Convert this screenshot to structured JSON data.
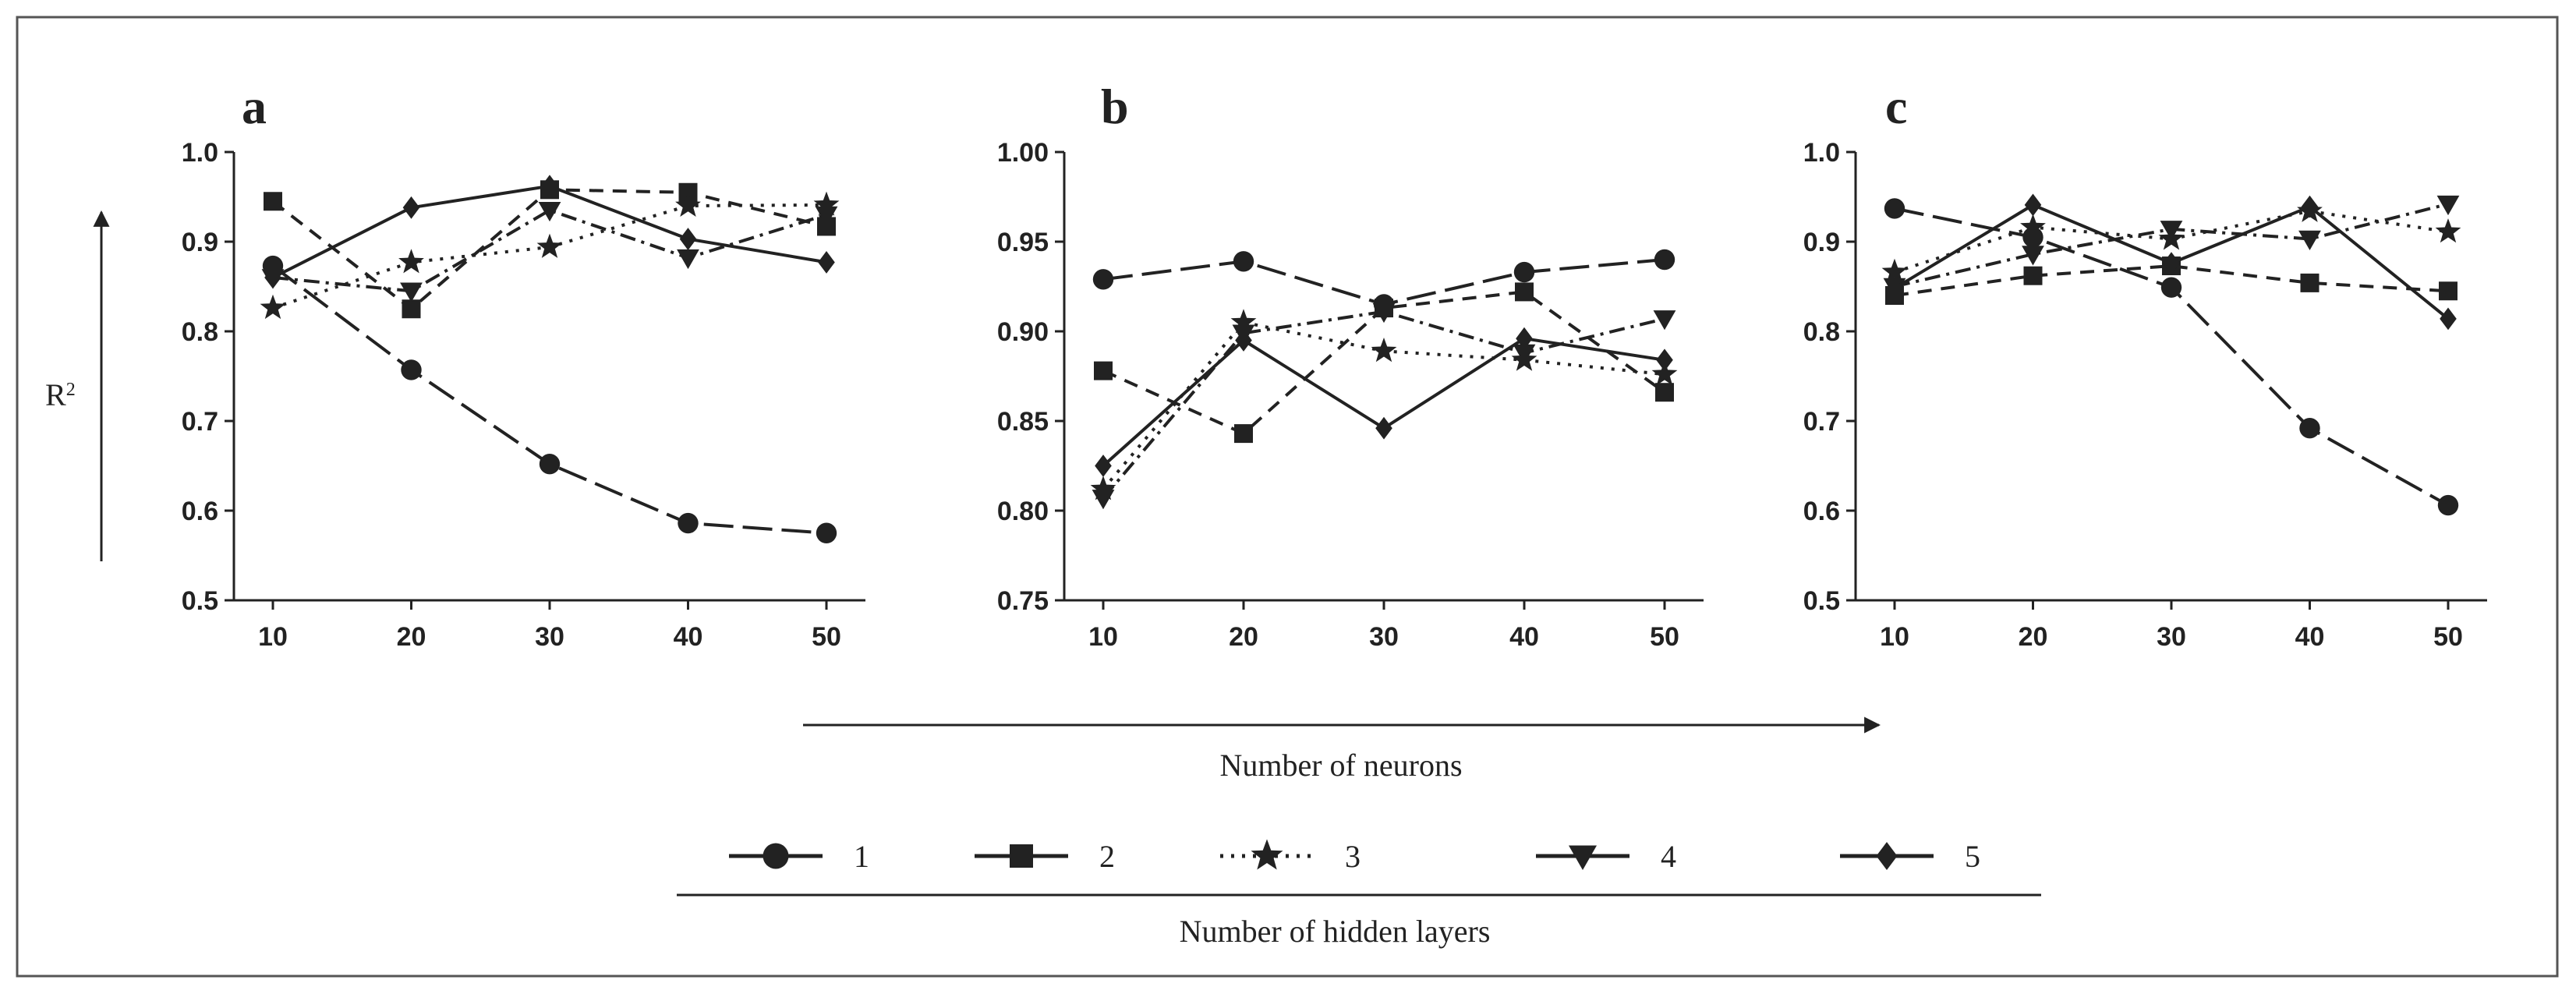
{
  "figure": {
    "ylabel_main": "R",
    "ylabel_sup": "2",
    "xlabel": "Number of neurons",
    "legend_title": "Number of hidden layers"
  },
  "chart_data": [
    {
      "type": "line",
      "panel": "a",
      "title": "a",
      "xlabel": "",
      "ylabel": "R²",
      "x": [
        10,
        20,
        30,
        40,
        50
      ],
      "ylim": [
        0.5,
        1.0
      ],
      "yticks": [
        0.5,
        0.6,
        0.7,
        0.8,
        0.9,
        1.0
      ],
      "ytick_labels": [
        "0.5",
        "0.6",
        "0.7",
        "0.8",
        "0.9",
        "1.0"
      ],
      "xtick_labels": [
        "10",
        "20",
        "30",
        "40",
        "50"
      ],
      "grid": false,
      "series": [
        {
          "name": "1",
          "values": [
            0.873,
            0.757,
            0.652,
            0.586,
            0.575
          ]
        },
        {
          "name": "2",
          "values": [
            0.945,
            0.825,
            0.958,
            0.955,
            0.917
          ]
        },
        {
          "name": "3",
          "values": [
            0.826,
            0.877,
            0.894,
            0.94,
            0.941
          ]
        },
        {
          "name": "4",
          "values": [
            0.86,
            0.845,
            0.935,
            0.882,
            0.93
          ]
        },
        {
          "name": "5",
          "values": [
            0.86,
            0.938,
            0.962,
            0.903,
            0.877
          ]
        }
      ]
    },
    {
      "type": "line",
      "panel": "b",
      "title": "b",
      "xlabel": "",
      "ylabel": "",
      "x": [
        10,
        20,
        30,
        40,
        50
      ],
      "ylim": [
        0.75,
        1.0
      ],
      "yticks": [
        0.75,
        0.8,
        0.85,
        0.9,
        0.95,
        1.0
      ],
      "ytick_labels": [
        "0.75",
        "0.80",
        "0.85",
        "0.90",
        "0.95",
        "1.00"
      ],
      "xtick_labels": [
        "10",
        "20",
        "30",
        "40",
        "50"
      ],
      "grid": false,
      "series": [
        {
          "name": "1",
          "values": [
            0.929,
            0.939,
            0.915,
            0.933,
            0.94
          ]
        },
        {
          "name": "2",
          "values": [
            0.878,
            0.843,
            0.913,
            0.922,
            0.866
          ]
        },
        {
          "name": "3",
          "values": [
            0.812,
            0.905,
            0.889,
            0.884,
            0.876
          ]
        },
        {
          "name": "4",
          "values": [
            0.807,
            0.899,
            0.911,
            0.888,
            0.907
          ]
        },
        {
          "name": "5",
          "values": [
            0.825,
            0.895,
            0.846,
            0.896,
            0.884
          ]
        }
      ]
    },
    {
      "type": "line",
      "panel": "c",
      "title": "c",
      "xlabel": "",
      "ylabel": "",
      "x": [
        10,
        20,
        30,
        40,
        50
      ],
      "ylim": [
        0.5,
        1.0
      ],
      "yticks": [
        0.5,
        0.6,
        0.7,
        0.8,
        0.9,
        1.0
      ],
      "ytick_labels": [
        "0.5",
        "0.6",
        "0.7",
        "0.8",
        "0.9",
        "1.0"
      ],
      "xtick_labels": [
        "10",
        "20",
        "30",
        "40",
        "50"
      ],
      "grid": false,
      "series": [
        {
          "name": "1",
          "values": [
            0.937,
            0.905,
            0.849,
            0.692,
            0.606
          ]
        },
        {
          "name": "2",
          "values": [
            0.84,
            0.862,
            0.873,
            0.854,
            0.845
          ]
        },
        {
          "name": "3",
          "values": [
            0.866,
            0.916,
            0.903,
            0.934,
            0.911
          ]
        },
        {
          "name": "4",
          "values": [
            0.85,
            0.886,
            0.914,
            0.903,
            0.942
          ]
        },
        {
          "name": "5",
          "values": [
            0.848,
            0.941,
            0.876,
            0.939,
            0.814
          ]
        }
      ]
    }
  ],
  "legend": {
    "items": [
      {
        "label": "1",
        "marker": "circle",
        "line": "long-dash"
      },
      {
        "label": "2",
        "marker": "square",
        "line": "dashed"
      },
      {
        "label": "3",
        "marker": "star",
        "line": "dotted"
      },
      {
        "label": "4",
        "marker": "triangle-down",
        "line": "dash-dot"
      },
      {
        "label": "5",
        "marker": "diamond",
        "line": "solid"
      }
    ]
  },
  "colors": {
    "ink": "#222222",
    "frame": "#555555"
  }
}
